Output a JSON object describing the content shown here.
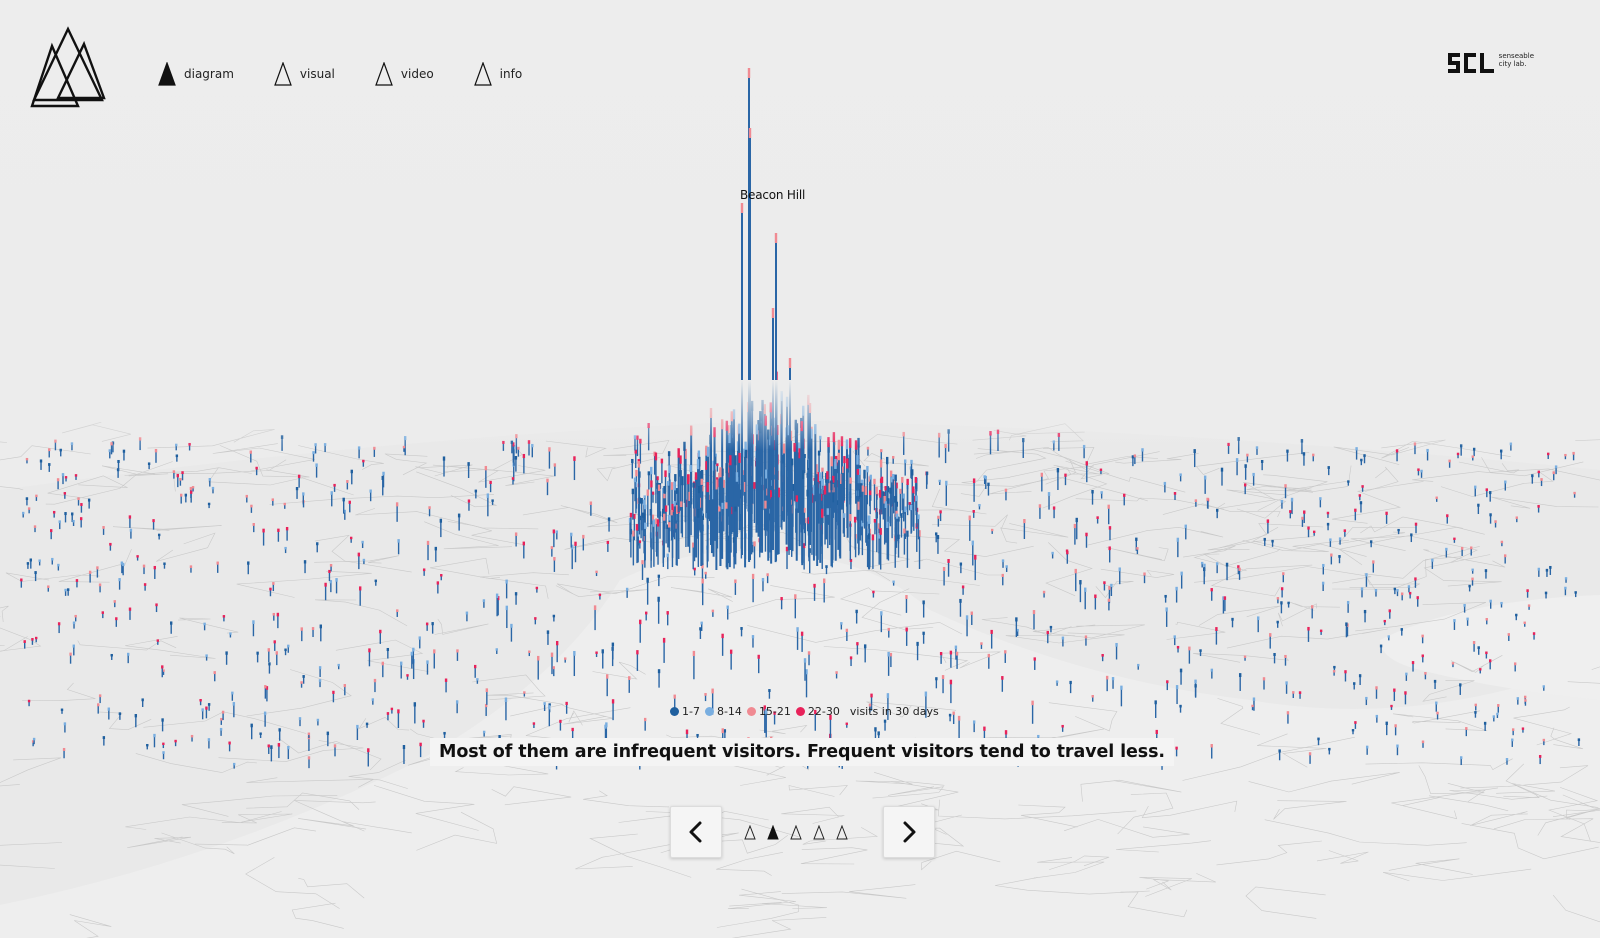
{
  "nav": {
    "items": [
      {
        "label": "diagram",
        "active": true
      },
      {
        "label": "visual",
        "active": false
      },
      {
        "label": "video",
        "active": false
      },
      {
        "label": "info",
        "active": false
      }
    ]
  },
  "brand": {
    "logo_icon": "triple-triangle-logo-icon",
    "scl_text": "senseable\ncity lab."
  },
  "map": {
    "place_label": "Beacon Hill"
  },
  "legend": {
    "items": [
      {
        "label": "1-7",
        "color": "#1f5f9e"
      },
      {
        "label": "8-14",
        "color": "#79aee0"
      },
      {
        "label": "15-21",
        "color": "#f08a92"
      },
      {
        "label": "22-30",
        "color": "#e8225a"
      }
    ],
    "suffix": "visits in 30 days"
  },
  "caption": "Most of them are infrequent visitors. Frequent visitors tend to travel less.",
  "pager": {
    "prev_icon": "chevron-left-icon",
    "next_icon": "chevron-right-icon",
    "pages": 5,
    "active_index": 1
  }
}
